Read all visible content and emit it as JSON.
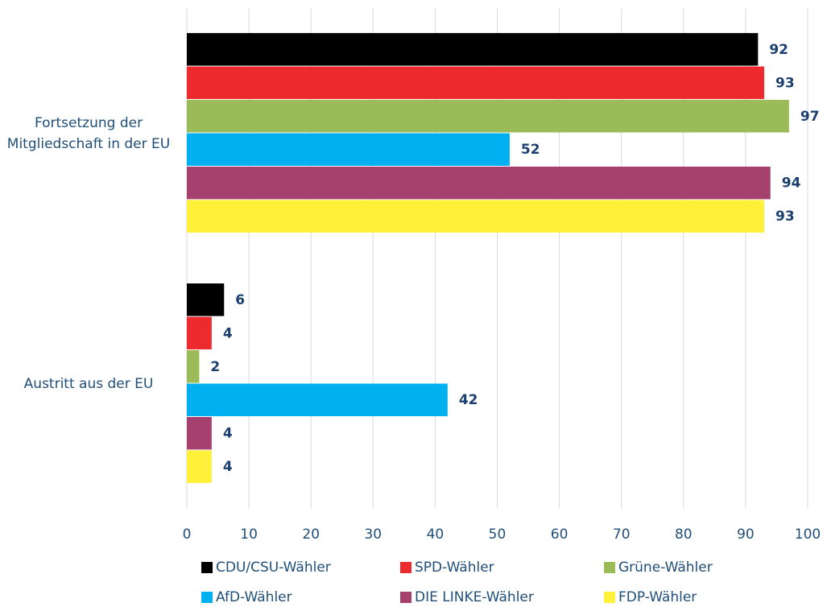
{
  "chart_data": {
    "type": "hbar",
    "categories": [
      "Fortsetzung der Mitgliedschaft in der EU",
      "Austritt aus der EU"
    ],
    "series": [
      {
        "name": "CDU/CSU-Wähler",
        "color": "#000000",
        "values": [
          92,
          6
        ]
      },
      {
        "name": "SPD-Wähler",
        "color": "#ed2a2e",
        "values": [
          93,
          4
        ]
      },
      {
        "name": "Grüne-Wähler",
        "color": "#9bbb59",
        "values": [
          97,
          2
        ]
      },
      {
        "name": "AfD-Wähler",
        "color": "#00b0f0",
        "values": [
          52,
          42
        ]
      },
      {
        "name": "DIE LINKE-Wähler",
        "color": "#a6406f",
        "values": [
          94,
          4
        ]
      },
      {
        "name": "FDP-Wähler",
        "color": "#fff03a",
        "values": [
          93,
          4
        ]
      }
    ],
    "xlim": [
      0,
      100
    ],
    "xticks": [
      0,
      10,
      20,
      30,
      40,
      50,
      60,
      70,
      80,
      90,
      100
    ],
    "grid": true,
    "legend": "bottom"
  }
}
